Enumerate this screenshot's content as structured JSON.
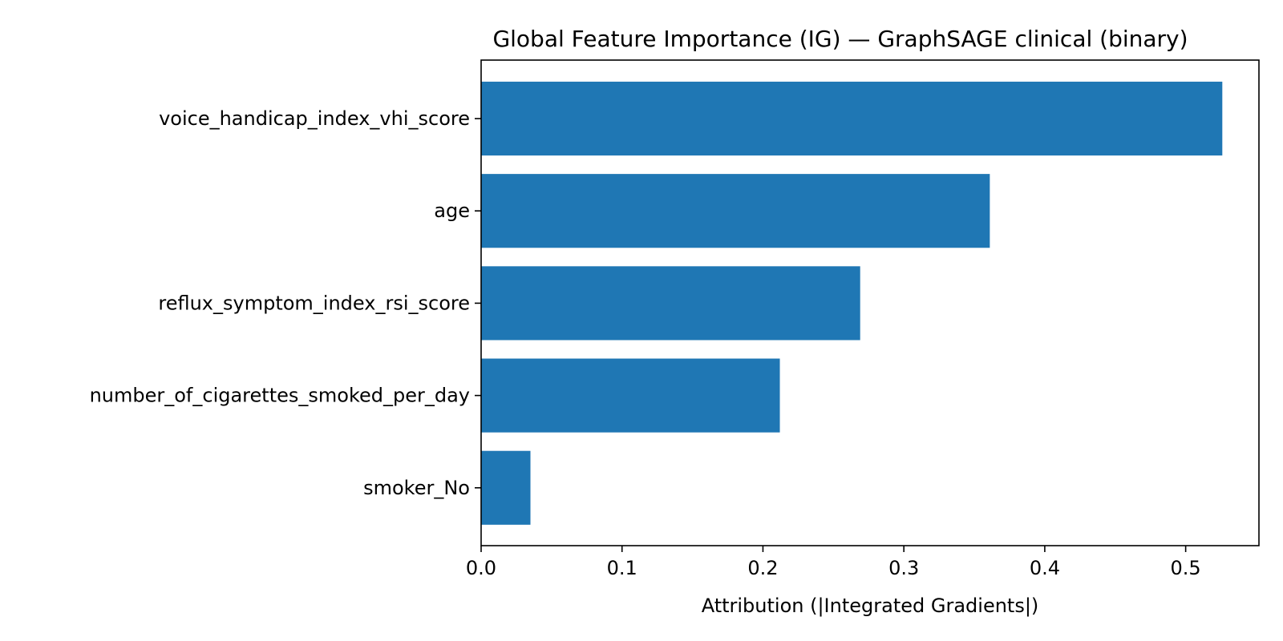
{
  "chart_data": {
    "type": "bar",
    "orientation": "horizontal",
    "title": "Global Feature Importance (IG) — GraphSAGE clinical (binary)",
    "xlabel": "Attribution (|Integrated Gradients|)",
    "ylabel": "",
    "categories": [
      "voice_handicap_index_vhi_score",
      "age",
      "reflux_symptom_index_rsi_score",
      "number_of_cigarettes_smoked_per_day",
      "smoker_No"
    ],
    "values": [
      0.526,
      0.361,
      0.269,
      0.212,
      0.035
    ],
    "xlim": [
      0,
      0.552
    ],
    "xticks": [
      0.0,
      0.1,
      0.2,
      0.3,
      0.4,
      0.5
    ],
    "xtick_labels": [
      "0.0",
      "0.1",
      "0.2",
      "0.3",
      "0.4",
      "0.5"
    ],
    "bar_color": "#1f77b4",
    "grid": false,
    "legend": "none"
  }
}
